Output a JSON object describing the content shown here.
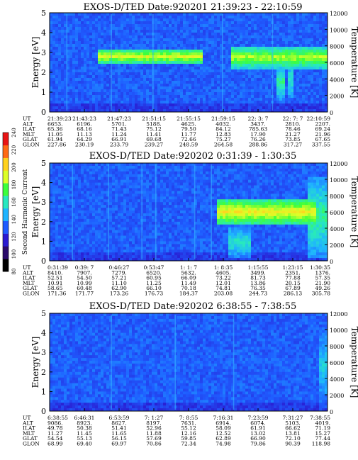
{
  "chart_data": [
    {
      "type": "heatmap",
      "title": "EXOS-D/TED   Date:920201  21:39:23 - 22:10:59",
      "ylabel": "Energy [eV]",
      "y2label": "Temperature [K]",
      "ylim": [
        0,
        5
      ],
      "y2lim": [
        0,
        12000
      ],
      "yticks": [
        "0",
        "1",
        "2",
        "3",
        "4",
        "5"
      ],
      "y2ticks": [
        "0",
        "2000",
        "4000",
        "6000",
        "8000",
        "10000",
        "12000"
      ],
      "ephemeris_labels": [
        "UT",
        "ALT",
        "ILAT",
        "MLT",
        "GLAT",
        "GLON"
      ],
      "ephemeris_columns": [
        [
          "21:39:23",
          "6653.",
          "65.36",
          "11.05",
          "61.94",
          "227.86"
        ],
        [
          "21:43:23",
          "6196.",
          "68.16",
          "11.13",
          "64.29",
          "230.19"
        ],
        [
          "21:47:23",
          "5701.",
          "71.43",
          "11.24",
          "66.91",
          "233.79"
        ],
        [
          "21:51:15",
          "5188.",
          "75.12",
          "11.41",
          "69.68",
          "239.27"
        ],
        [
          "21:55:15",
          "4625.",
          "79.50",
          "11.77",
          "72.66",
          "248.59"
        ],
        [
          "21:59:15",
          "4032.",
          "84.12",
          "12.83",
          "75.27",
          "264.58"
        ],
        [
          "22: 3: 7",
          "3437.",
          "785.63",
          "17.90",
          "76.26",
          "288.86"
        ],
        [
          "22: 7: 7",
          "2810.",
          "78.46",
          "21.27",
          "73.85",
          "317.27"
        ],
        [
          "22:10:59",
          "2207.",
          "69.24",
          "21.96",
          "67.65",
          "337.55"
        ]
      ],
      "bands": [
        {
          "t0": 0.17,
          "t1": 0.55,
          "e0": 2.4,
          "e1": 3.2,
          "level": 0.72
        },
        {
          "t0": 0.65,
          "t1": 1.0,
          "e0": 2.2,
          "e1": 3.3,
          "level": 0.68
        },
        {
          "t0": 0.82,
          "t1": 0.85,
          "e0": 0.6,
          "e1": 2.4,
          "level": 0.55
        },
        {
          "t0": 0.86,
          "t1": 0.88,
          "e0": 0.6,
          "e1": 2.6,
          "level": 0.5
        }
      ],
      "spikes": [
        0.06,
        0.22,
        0.37,
        0.62,
        0.8
      ]
    },
    {
      "type": "heatmap",
      "title": "EXOS-D/TED   Date:920202  0:31:39 - 1:30:35",
      "ylabel": "Energy [eV]",
      "y2label": "Temperature [K]",
      "ylim": [
        0,
        5
      ],
      "y2lim": [
        0,
        12000
      ],
      "yticks": [
        "0",
        "1",
        "2",
        "3",
        "4",
        "5"
      ],
      "y2ticks": [
        "0",
        "2000",
        "4000",
        "6000",
        "8000",
        "10000",
        "12000"
      ],
      "ephemeris_labels": [
        "UT",
        "ALT",
        "ILAT",
        "MLT",
        "GLAT",
        "GLON"
      ],
      "ephemeris_columns": [
        [
          "0:31:39",
          "8410.",
          "52.51",
          "10.91",
          "58.65",
          "171.36"
        ],
        [
          "0:39: 7",
          "7907.",
          "54.50",
          "10.99",
          "60.48",
          "171.77"
        ],
        [
          "0:46:27",
          "7279.",
          "57.21",
          "11.10",
          "62.90",
          "173.26"
        ],
        [
          "0:53:47",
          "6520.",
          "60.95",
          "11.25",
          "66.10",
          "176.73"
        ],
        [
          "1: 1: 7",
          "5632.",
          "66.09",
          "11.49",
          "70.18",
          "184.37"
        ],
        [
          "1: 8:35",
          "4605.",
          "73.22",
          "12.01",
          "74.81",
          "203.08"
        ],
        [
          "1:15:55",
          "3499.",
          "81.73",
          "13.86",
          "76.35",
          "244.73"
        ],
        [
          "1:23:15",
          "2351.",
          "77.88",
          "20.15",
          "67.89",
          "286.13"
        ],
        [
          "1:30:35",
          "1376.",
          "57.35",
          "21.90",
          "49.26",
          "305.78"
        ]
      ],
      "bands": [
        {
          "t0": 0.6,
          "t1": 0.96,
          "e0": 1.8,
          "e1": 3.2,
          "level": 0.75
        },
        {
          "t0": 0.64,
          "t1": 0.72,
          "e0": 0.1,
          "e1": 1.8,
          "level": 0.5
        },
        {
          "t0": 0.93,
          "t1": 1.0,
          "e0": 0.2,
          "e1": 4.3,
          "level": 0.55
        }
      ],
      "spikes": [
        0.08,
        0.21,
        0.33,
        0.38,
        0.52,
        0.58
      ]
    },
    {
      "type": "heatmap",
      "title": "EXOS-D/TED   Date:920202  6:38:55 - 7:38:55",
      "ylabel": "Energy [eV]",
      "y2label": "Temperature [K]",
      "ylim": [
        0,
        5
      ],
      "y2lim": [
        0,
        12000
      ],
      "yticks": [
        "0",
        "1",
        "2",
        "3",
        "4",
        "5"
      ],
      "y2ticks": [
        "0",
        "2000",
        "4000",
        "6000",
        "8000",
        "10000",
        "12000"
      ],
      "ephemeris_labels": [
        "UT",
        "ALT",
        "ILAT",
        "MLT",
        "GLAT",
        "GLON"
      ],
      "ephemeris_columns": [
        [
          "6:38:55",
          "9086.",
          "49.78",
          "11.27",
          "54.54",
          "68.99"
        ],
        [
          "6:46:31",
          "8923.",
          "50.38",
          "11.45",
          "55.13",
          "69.40"
        ],
        [
          "6:53:59",
          "8627.",
          "51.41",
          "11.65",
          "56.15",
          "69.97"
        ],
        [
          "7: 1:27",
          "8197.",
          "52.96",
          "11.88",
          "57.69",
          "70.86"
        ],
        [
          "7: 8:55",
          "7631.",
          "55.12",
          "12.16",
          "59.85",
          "72.34"
        ],
        [
          "7:16:31",
          "6914.",
          "58.09",
          "12.52",
          "62.89",
          "74.98"
        ],
        [
          "7:23:59",
          "6074.",
          "61.91",
          "13.02",
          "66.90",
          "79.86"
        ],
        [
          "7:31:27",
          "5103.",
          "66.62",
          "13.81",
          "72.10",
          "90.39"
        ],
        [
          "7:38:55",
          "4019.",
          "71.19",
          "15.27",
          "77.44",
          "118.98"
        ]
      ],
      "bands": [
        {
          "t0": 0.0,
          "t1": 1.0,
          "e0": 2.1,
          "e1": 3.0,
          "level": 0.3
        },
        {
          "t0": 0.97,
          "t1": 1.0,
          "e0": 0.2,
          "e1": 4.3,
          "level": 0.45
        }
      ],
      "spikes": [
        0.22,
        0.45,
        0.66
      ]
    }
  ],
  "colorbar": {
    "label": "Second Harmonic Current",
    "ticks": [
      "80",
      "100",
      "120",
      "140",
      "160",
      "180",
      "200",
      "220",
      "240"
    ],
    "colors": [
      "#000000",
      "#2a0a6a",
      "#2a1ad0",
      "#1f5cff",
      "#1fb4ff",
      "#28e8c0",
      "#3cff3c",
      "#dcff28",
      "#ffd21e",
      "#ff6a14",
      "#e81414"
    ]
  }
}
